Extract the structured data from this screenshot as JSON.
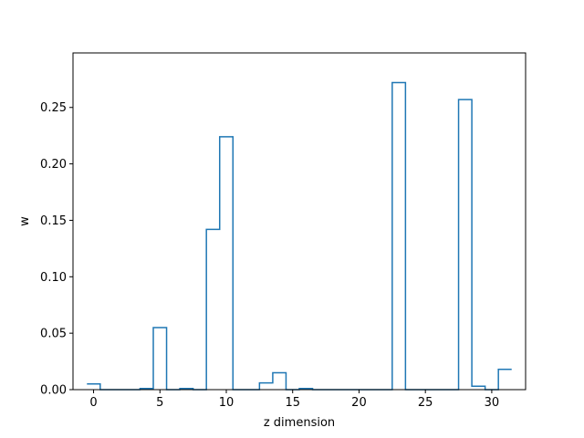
{
  "chart_data": {
    "type": "step",
    "xlabel": "z dimension",
    "ylabel": "w",
    "xlim": [
      -1.55,
      32.55
    ],
    "ylim": [
      0,
      0.2983
    ],
    "xticks": [
      0,
      5,
      10,
      15,
      20,
      25,
      30
    ],
    "yticks": [
      0.0,
      0.05,
      0.1,
      0.15,
      0.2,
      0.25
    ],
    "ytick_labels": [
      "0.00",
      "0.05",
      "0.10",
      "0.15",
      "0.20",
      "0.25"
    ],
    "grid": false,
    "line_color": "#1f77b4",
    "series": [
      {
        "x": [
          0,
          1,
          2,
          3,
          4,
          5,
          6,
          7,
          8,
          9,
          10,
          11,
          12,
          13,
          14,
          15,
          16,
          17,
          18,
          19,
          20,
          21,
          22,
          23,
          24,
          25,
          26,
          27,
          28,
          29,
          30,
          31
        ],
        "values": [
          0.005,
          0.0,
          0.0,
          0.0,
          0.001,
          0.055,
          0.0,
          0.001,
          0.0,
          0.142,
          0.224,
          0.0,
          0.0,
          0.006,
          0.015,
          0.0,
          0.001,
          0.0,
          0.0,
          0.0,
          0.0,
          0.0,
          0.0,
          0.272,
          0.0,
          0.0,
          0.0,
          0.0,
          0.257,
          0.003,
          0.0,
          0.018
        ]
      }
    ]
  }
}
